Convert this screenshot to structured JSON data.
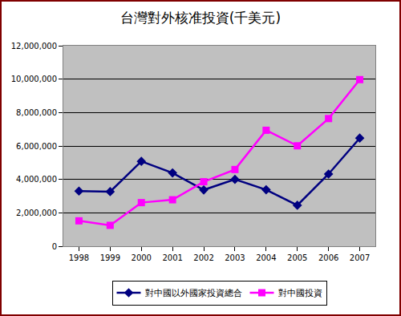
{
  "chart_data": {
    "type": "line",
    "title": "台灣對外核准投資(千美元)",
    "categories": [
      "1998",
      "1999",
      "2000",
      "2001",
      "2002",
      "2003",
      "2004",
      "2005",
      "2006",
      "2007"
    ],
    "series": [
      {
        "name": "對中國以外國家投資總合",
        "color": "#000080",
        "marker": "diamond",
        "values": [
          3300000,
          3270000,
          5080000,
          4390000,
          3370000,
          4000000,
          3380000,
          2450000,
          4320000,
          6470000
        ]
      },
      {
        "name": "對中國投資",
        "color": "#ff00ff",
        "marker": "square",
        "values": [
          1520000,
          1250000,
          2610000,
          2780000,
          3860000,
          4590000,
          6940000,
          6010000,
          7640000,
          9970000
        ]
      }
    ],
    "ylim": [
      0,
      12000000
    ],
    "yticks": [
      0,
      {
        "value": 2000000,
        "label": "2,000,000"
      },
      {
        "value": 4000000,
        "label": "4,000,000"
      },
      {
        "value": 6000000,
        "label": "6,000,000"
      },
      {
        "value": 8000000,
        "label": "8,000,000"
      },
      {
        "value": 10000000,
        "label": "10,000,000"
      },
      {
        "value": 12000000,
        "label": "12,000,000"
      }
    ],
    "grid": true,
    "legend": "bottom"
  }
}
